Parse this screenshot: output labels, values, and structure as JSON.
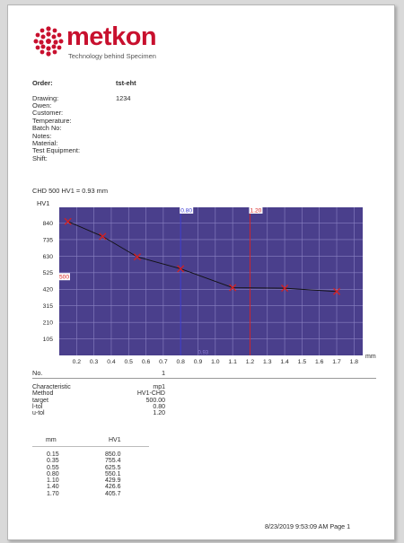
{
  "header": {
    "brand": "metkon",
    "tagline": "Technology behind Specimen"
  },
  "order": {
    "label": "Order:",
    "value": "tst-eht"
  },
  "drawing": {
    "label": "Drawing:",
    "value": "1234"
  },
  "fields": [
    "Owen:",
    "Customer:",
    "Temperature:",
    "Batch No:",
    "Notes:",
    "Material:",
    "Test Equipment:",
    "Shift:"
  ],
  "chd_text": "CHD 500 HV1 = 0.93 mm",
  "chart_data": {
    "type": "line",
    "ylabel": "HV1",
    "xlabel": "mm",
    "xlim": [
      0.1,
      1.85
    ],
    "ylim": [
      0,
      940
    ],
    "x_ticks": [
      "0.2",
      "0.3",
      "0.4",
      "0.5",
      "0.6",
      "0.7",
      "0.8",
      "0.9",
      "1.0",
      "1.1",
      "1.2",
      "1.3",
      "1.4",
      "1.5",
      "1.6",
      "1.7",
      "1.8"
    ],
    "y_ticks": [
      "105",
      "210",
      "315",
      "420",
      "525",
      "630",
      "735",
      "840"
    ],
    "series": [
      {
        "values": [
          {
            "x": 0.15,
            "y": 850.0
          },
          {
            "x": 0.35,
            "y": 755.4
          },
          {
            "x": 0.55,
            "y": 625.5
          },
          {
            "x": 0.8,
            "y": 550.1
          },
          {
            "x": 1.1,
            "y": 429.9
          },
          {
            "x": 1.4,
            "y": 426.6
          },
          {
            "x": 1.7,
            "y": 405.7
          }
        ]
      }
    ],
    "annotations": [
      {
        "label": "0.80",
        "x": 0.8,
        "color": "#3b3bd4"
      },
      {
        "label": "1.20",
        "x": 1.2,
        "color": "#d62020"
      },
      {
        "label": "500",
        "y": 500,
        "color": "#d62020"
      }
    ],
    "bottom_marker": "0.93",
    "plot_color": "#4a3f8c",
    "grid": true
  },
  "no": {
    "label": "No.",
    "value": "1"
  },
  "characteristics": [
    {
      "label": "Characteristic",
      "value": "mp1"
    },
    {
      "label": "Method",
      "value": "HV1-CHD"
    },
    {
      "label": "target",
      "value": "500.00"
    },
    {
      "label": "l-tol",
      "value": "0.80"
    },
    {
      "label": "u-tol",
      "value": "1.20"
    }
  ],
  "table": {
    "headers": [
      "mm",
      "HV1"
    ],
    "rows": [
      [
        "0.15",
        "850.0"
      ],
      [
        "0.35",
        "755.4"
      ],
      [
        "0.55",
        "625.5"
      ],
      [
        "0.80",
        "550.1"
      ],
      [
        "1.10",
        "429.9"
      ],
      [
        "1.40",
        "426.6"
      ],
      [
        "1.70",
        "405.7"
      ]
    ]
  },
  "footer": "8/23/2019 9:53:09 AM Page 1"
}
